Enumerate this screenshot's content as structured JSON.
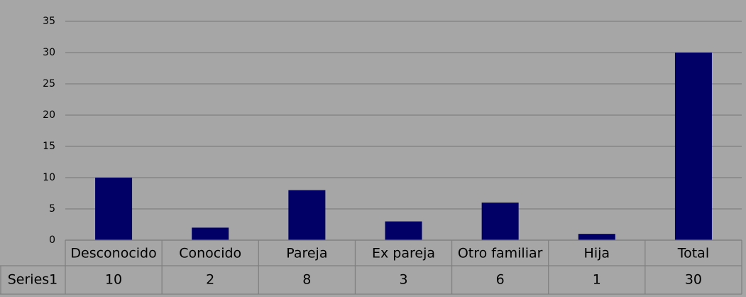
{
  "chart_data": {
    "type": "bar",
    "categories": [
      "Desconocido",
      "Conocido",
      "Pareja",
      "Ex pareja",
      "Otro familiar",
      "Hija",
      "Total"
    ],
    "series": [
      {
        "name": "Series1",
        "color": "#000066",
        "values": [
          10,
          2,
          8,
          3,
          6,
          1,
          30
        ]
      }
    ],
    "ylim": [
      0,
      35
    ],
    "yticks": [
      0,
      5,
      10,
      15,
      20,
      25,
      30,
      35
    ],
    "grid": true,
    "data_table": true
  }
}
